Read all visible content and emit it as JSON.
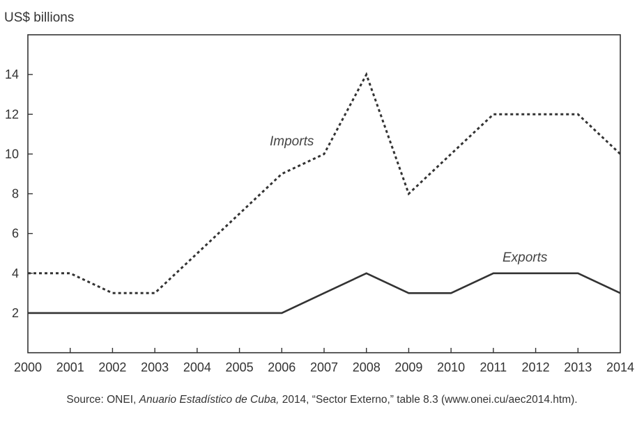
{
  "chart_data": {
    "type": "line",
    "ylabel": "US$ billions",
    "x": [
      2000,
      2001,
      2002,
      2003,
      2004,
      2005,
      2006,
      2007,
      2008,
      2009,
      2010,
      2011,
      2012,
      2013,
      2014
    ],
    "x_tick_labels": [
      "2000",
      "2001",
      "2002",
      "2003",
      "2004",
      "2005",
      "2006",
      "2007",
      "2008",
      "2009",
      "2010",
      "2011",
      "2012",
      "2013",
      "2014"
    ],
    "ylim": [
      0,
      16
    ],
    "y_ticks": [
      2,
      4,
      6,
      8,
      10,
      12,
      14
    ],
    "y_tick_labels": [
      "2",
      "4",
      "6",
      "8",
      "10",
      "12",
      "14"
    ],
    "series": [
      {
        "name": "Imports",
        "style": "dotted",
        "color": "#333333",
        "values": [
          4,
          4,
          3,
          3,
          5,
          7,
          9,
          10,
          14,
          8,
          10,
          12,
          12,
          12,
          10
        ]
      },
      {
        "name": "Exports",
        "style": "solid",
        "color": "#333333",
        "values": [
          2,
          2,
          2,
          2,
          2,
          2,
          2,
          3,
          4,
          3,
          3,
          4,
          4,
          4,
          3
        ]
      }
    ],
    "annotations": [
      {
        "text": "Imports",
        "series": "Imports"
      },
      {
        "text": "Exports",
        "series": "Exports"
      }
    ],
    "grid": false
  },
  "source": {
    "prefix": "Source: ONEI, ",
    "title": "Anuario Estadístico de Cuba,",
    "suffix": " 2014, “Sector Externo,” table 8.3 (www.onei.cu/aec2014.htm)."
  }
}
